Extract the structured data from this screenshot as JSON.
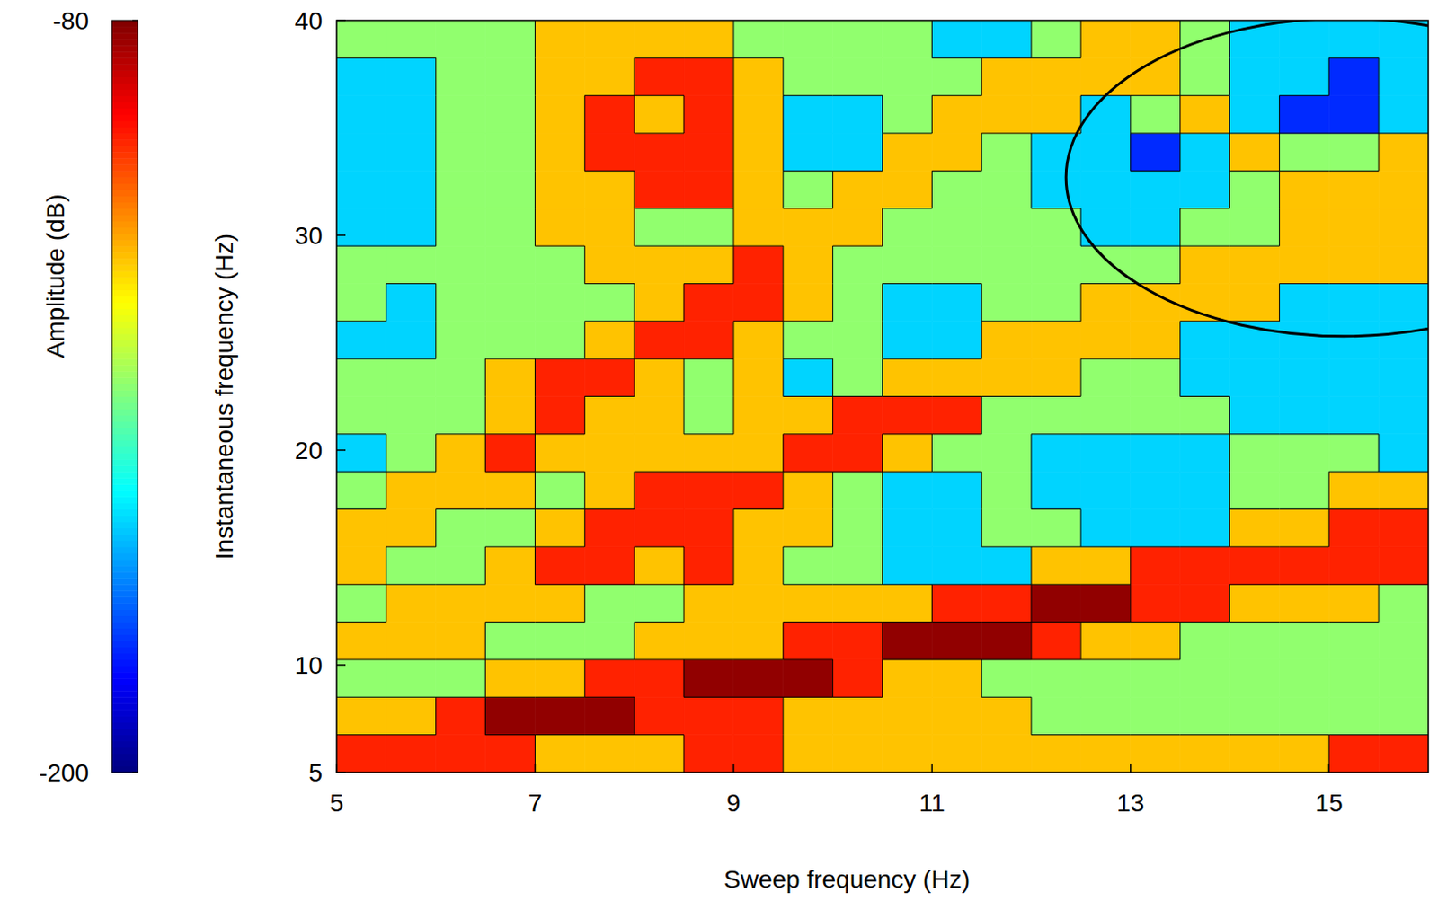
{
  "chart_data": {
    "type": "contour",
    "x_label": "Sweep frequency (Hz)",
    "y_label": "Instantaneous frequency (Hz)",
    "xlim": [
      5,
      16
    ],
    "ylim": [
      5,
      40
    ],
    "xticks": [
      5,
      7,
      9,
      11,
      13,
      15
    ],
    "yticks": [
      5,
      10,
      20,
      30,
      40
    ],
    "x": [
      5.25,
      5.75,
      6.25,
      6.75,
      7.25,
      7.75,
      8.25,
      8.75,
      9.25,
      9.75,
      10.25,
      10.75,
      11.25,
      11.75,
      12.25,
      12.75,
      13.25,
      13.75,
      14.25,
      14.75,
      15.25,
      15.75
    ],
    "y": [
      5.875,
      7.625,
      9.375,
      11.125,
      12.875,
      14.625,
      16.375,
      18.125,
      19.875,
      21.625,
      23.375,
      25.125,
      26.875,
      28.625,
      30.375,
      32.125,
      33.875,
      35.625,
      37.375,
      39.125
    ],
    "z": [
      [
        -99,
        -99,
        -99,
        -99,
        -118,
        -118,
        -118,
        -99,
        -99,
        -118,
        -118,
        -118,
        -118,
        -118,
        -118,
        -118,
        -118,
        -118,
        -118,
        -118,
        -99,
        -99
      ],
      [
        -118,
        -118,
        -99,
        -82,
        -82,
        -82,
        -99,
        -99,
        -99,
        -118,
        -118,
        -118,
        -118,
        -118,
        -138,
        -138,
        -138,
        -138,
        -138,
        -138,
        -138,
        -138
      ],
      [
        -138,
        -138,
        -138,
        -118,
        -118,
        -99,
        -99,
        -82,
        -82,
        -82,
        -99,
        -118,
        -118,
        -138,
        -138,
        -138,
        -138,
        -138,
        -138,
        -138,
        -138,
        -138
      ],
      [
        -118,
        -118,
        -118,
        -138,
        -138,
        -138,
        -118,
        -118,
        -118,
        -99,
        -99,
        -82,
        -82,
        -82,
        -99,
        -118,
        -118,
        -138,
        -138,
        -138,
        -138,
        -138
      ],
      [
        -138,
        -118,
        -118,
        -118,
        -118,
        -138,
        -138,
        -118,
        -118,
        -118,
        -118,
        -118,
        -99,
        -99,
        -82,
        -82,
        -99,
        -99,
        -118,
        -118,
        -118,
        -138
      ],
      [
        -118,
        -138,
        -138,
        -118,
        -99,
        -99,
        -118,
        -99,
        -118,
        -138,
        -138,
        -160,
        -160,
        -160,
        -118,
        -118,
        -99,
        -99,
        -99,
        -99,
        -99,
        -99
      ],
      [
        -118,
        -118,
        -138,
        -138,
        -118,
        -99,
        -99,
        -99,
        -118,
        -118,
        -138,
        -160,
        -160,
        -138,
        -138,
        -160,
        -160,
        -160,
        -118,
        -118,
        -99,
        -99
      ],
      [
        -138,
        -118,
        -118,
        -118,
        -138,
        -118,
        -99,
        -99,
        -99,
        -118,
        -138,
        -160,
        -160,
        -138,
        -160,
        -160,
        -160,
        -160,
        -138,
        -138,
        -118,
        -118
      ],
      [
        -160,
        -138,
        -118,
        -99,
        -118,
        -118,
        -118,
        -118,
        -118,
        -99,
        -99,
        -118,
        -138,
        -138,
        -160,
        -160,
        -160,
        -160,
        -138,
        -138,
        -138,
        -160
      ],
      [
        -138,
        -138,
        -138,
        -118,
        -99,
        -118,
        -118,
        -138,
        -118,
        -118,
        -99,
        -99,
        -99,
        -138,
        -138,
        -138,
        -138,
        -138,
        -160,
        -160,
        -160,
        -160
      ],
      [
        -138,
        -138,
        -138,
        -118,
        -99,
        -99,
        -118,
        -138,
        -118,
        -160,
        -138,
        -118,
        -118,
        -118,
        -118,
        -138,
        -138,
        -160,
        -160,
        -160,
        -160,
        -160
      ],
      [
        -160,
        -160,
        -138,
        -138,
        -138,
        -118,
        -99,
        -99,
        -118,
        -138,
        -138,
        -160,
        -160,
        -118,
        -118,
        -118,
        -118,
        -160,
        -160,
        -160,
        -160,
        -160
      ],
      [
        -138,
        -160,
        -138,
        -138,
        -138,
        -138,
        -118,
        -99,
        -99,
        -118,
        -138,
        -160,
        -160,
        -138,
        -138,
        -118,
        -118,
        -118,
        -118,
        -160,
        -160,
        -160
      ],
      [
        -138,
        -138,
        -138,
        -138,
        -138,
        -118,
        -118,
        -118,
        -99,
        -118,
        -138,
        -138,
        -138,
        -138,
        -138,
        -138,
        -138,
        -118,
        -118,
        -118,
        -118,
        -118
      ],
      [
        -160,
        -160,
        -138,
        -138,
        -118,
        -118,
        -138,
        -138,
        -118,
        -118,
        -118,
        -138,
        -138,
        -138,
        -138,
        -160,
        -160,
        -138,
        -138,
        -118,
        -118,
        -118
      ],
      [
        -160,
        -160,
        -138,
        -138,
        -118,
        -118,
        -99,
        -99,
        -118,
        -138,
        -118,
        -118,
        -138,
        -138,
        -160,
        -160,
        -160,
        -160,
        -138,
        -118,
        -118,
        -118
      ],
      [
        -160,
        -160,
        -138,
        -138,
        -118,
        -99,
        -99,
        -99,
        -118,
        -160,
        -160,
        -118,
        -118,
        -138,
        -160,
        -160,
        -180,
        -160,
        -118,
        -138,
        -138,
        -118
      ],
      [
        -160,
        -160,
        -138,
        -138,
        -118,
        -99,
        -118,
        -99,
        -118,
        -160,
        -160,
        -138,
        -118,
        -118,
        -118,
        -160,
        -138,
        -118,
        -160,
        -180,
        -180,
        -160
      ],
      [
        -160,
        -160,
        -138,
        -138,
        -118,
        -118,
        -99,
        -99,
        -118,
        -138,
        -138,
        -138,
        -138,
        -118,
        -118,
        -118,
        -118,
        -138,
        -160,
        -160,
        -180,
        -160
      ],
      [
        -138,
        -138,
        -138,
        -138,
        -118,
        -118,
        -118,
        -118,
        -138,
        -138,
        -138,
        -138,
        -160,
        -160,
        -138,
        -118,
        -118,
        -138,
        -160,
        -160,
        -160,
        -160
      ]
    ],
    "colorbar": {
      "label": "Amplitude (dB)",
      "range": [
        -200,
        -80
      ],
      "ticks": [
        -80,
        -200
      ]
    },
    "highlight": {
      "x": 15.15,
      "y": 32.7,
      "rx": 2.8,
      "ry": 7.4
    }
  }
}
